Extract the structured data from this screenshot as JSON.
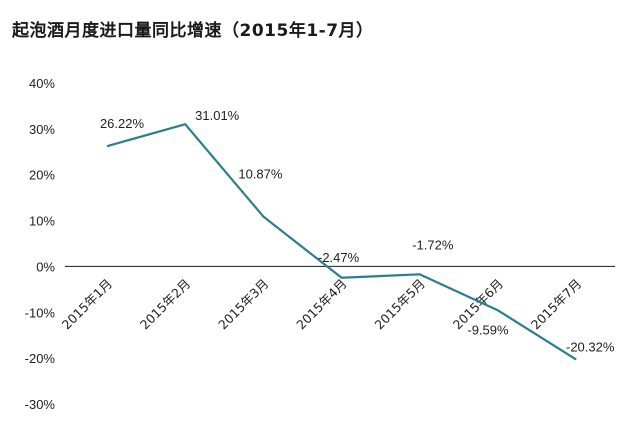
{
  "title": "起泡酒月度进口量同比增速（2015年1-7月）",
  "chart_data": {
    "type": "line",
    "title": "起泡酒月度进口量同比增速（2015年1-7月）",
    "categories": [
      "2015年1月",
      "2015年2月",
      "2015年3月",
      "2015年4月",
      "2015年5月",
      "2015年6月",
      "2015年7月"
    ],
    "series": [
      {
        "values": [
          26.22,
          31.01,
          10.87,
          -2.47,
          -1.72,
          -9.59,
          -20.32
        ]
      }
    ],
    "data_labels": [
      "26.22%",
      "31.01%",
      "10.87%",
      "-2.47%",
      "-1.72%",
      "-9.59%",
      "-20.32%"
    ],
    "y_ticks": [
      "40%",
      "30%",
      "20%",
      "10%",
      "0%",
      "-10%",
      "-20%",
      "-30%"
    ],
    "ylim": [
      -30,
      40
    ],
    "xlabel": "",
    "ylabel": "",
    "grid": false,
    "colors": {
      "line": "#2a7f8e",
      "zero_axis": "#1a1a1a",
      "text": "#222222"
    }
  }
}
